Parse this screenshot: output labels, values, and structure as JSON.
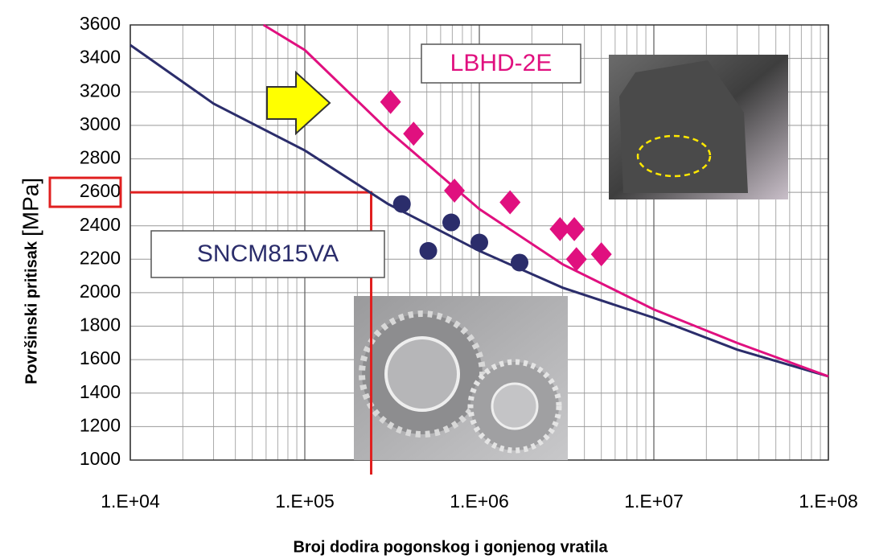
{
  "chart_data": {
    "type": "scatter",
    "x_label": "Broj dodira pogonskog i gonjenog vratila",
    "y_label": "Površinski pritisak",
    "y_unit": "[MPa]",
    "log_x": true,
    "grid": true,
    "xlim": [
      10000,
      100000000
    ],
    "ylim": [
      1000,
      3600
    ],
    "xticks": [
      {
        "value": 10000,
        "label": "1.E+04"
      },
      {
        "value": 100000,
        "label": "1.E+05"
      },
      {
        "value": 1000000,
        "label": "1.E+06"
      },
      {
        "value": 10000000,
        "label": "1.E+07"
      },
      {
        "value": 100000000,
        "label": "1.E+08"
      }
    ],
    "yticks": [
      1000,
      1200,
      1400,
      1600,
      1800,
      2000,
      2200,
      2400,
      2600,
      2800,
      3000,
      3200,
      3400,
      3600
    ],
    "series": [
      {
        "name": "SNCM815VA",
        "color": "#2b2d6b",
        "marker": "circle",
        "x": [
          360000,
          510000,
          690000,
          1000000,
          1700000
        ],
        "values": [
          2530,
          2250,
          2420,
          2300,
          2180
        ],
        "curve_x": [
          10000,
          30000,
          100000,
          300000,
          1000000,
          3000000,
          10000000,
          30000000,
          100000000
        ],
        "curve_values": [
          3480,
          3130,
          2850,
          2530,
          2250,
          2030,
          1850,
          1660,
          1500
        ]
      },
      {
        "name": "LBHD-2E",
        "color": "#e0107f",
        "marker": "diamond",
        "x": [
          310000,
          420000,
          720000,
          1500000,
          2900000,
          3500000,
          3600000,
          5000000
        ],
        "values": [
          3140,
          2950,
          2610,
          2540,
          2380,
          2380,
          2200,
          2230
        ],
        "curve_x": [
          58000,
          100000,
          300000,
          1000000,
          3000000,
          10000000,
          30000000,
          100000000
        ],
        "curve_values": [
          3600,
          3450,
          2970,
          2500,
          2170,
          1900,
          1700,
          1500
        ]
      }
    ],
    "reference": {
      "x": 240000,
      "y": 2600,
      "color": "#e02020"
    }
  }
}
